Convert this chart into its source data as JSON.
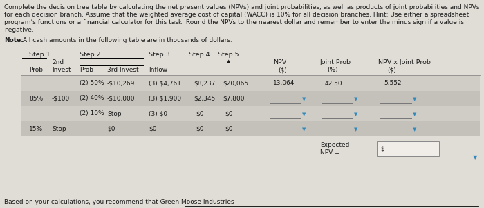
{
  "bg_color": "#e0ddd7",
  "text_color": "#1a1a1a",
  "title_lines": [
    "Complete the decision tree table by calculating the net present values (NPVs) and joint probabilities, as well as products of joint probabilities and NPVs",
    "for each decision branch. Assume that the weighted average cost of capital (WACC) is 10% for all decision branches. Hint: Use either a spreadsheet",
    "program’s functions or a financial calculator for this task. Round the NPVs to the nearest dollar and remember to enter the minus sign if a value is",
    "negative."
  ],
  "note_text": "Note: All cash amounts in the following table are in thousands of dollars.",
  "row_bg_colors": [
    "#d0cdc6",
    "#c4c1ba",
    "#d0cdc6",
    "#c4c1ba"
  ],
  "dropdown_color": "#b0aaa3",
  "dropdown_arrow_color": "#3388bb",
  "white_box_color": "#f0ede8",
  "font_size_para": 6.5,
  "font_size_note": 6.5,
  "font_size_header": 6.8,
  "font_size_cell": 6.5
}
